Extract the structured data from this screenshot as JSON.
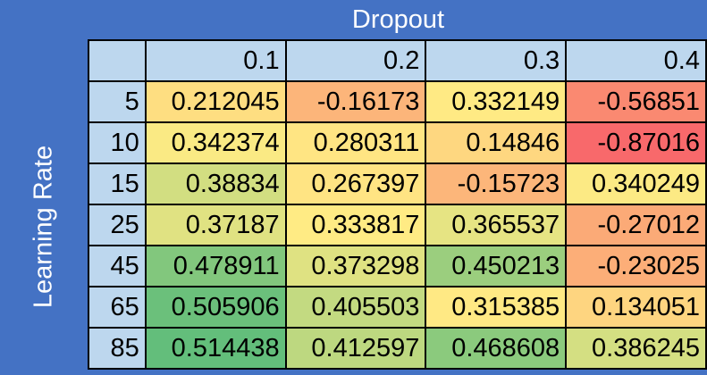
{
  "chart_data": {
    "type": "heatmap",
    "column_axis_label": "Dropout",
    "row_axis_label": "Learning Rate",
    "columns": [
      "0.1",
      "0.2",
      "0.3",
      "0.4"
    ],
    "rows": [
      "5",
      "10",
      "15",
      "25",
      "45",
      "65",
      "85"
    ],
    "cells": [
      [
        "0.212045",
        "-0.16173",
        "0.332149",
        "-0.56851"
      ],
      [
        "0.342374",
        "0.280311",
        "0.14846",
        "-0.87016"
      ],
      [
        "0.38834",
        "0.267397",
        "-0.15723",
        "0.340249"
      ],
      [
        "0.37187",
        "0.333817",
        "0.365537",
        "-0.27012"
      ],
      [
        "0.478911",
        "0.373298",
        "0.450213",
        "-0.23025"
      ],
      [
        "0.505906",
        "0.405503",
        "0.315385",
        "0.134051"
      ],
      [
        "0.514438",
        "0.412597",
        "0.468608",
        "0.386245"
      ]
    ],
    "color_scale": {
      "low": "#F8696B",
      "mid": "#FFEB84",
      "high": "#63BE7B"
    },
    "header_fill": "#BDD7EE",
    "background": "#4472C4"
  }
}
